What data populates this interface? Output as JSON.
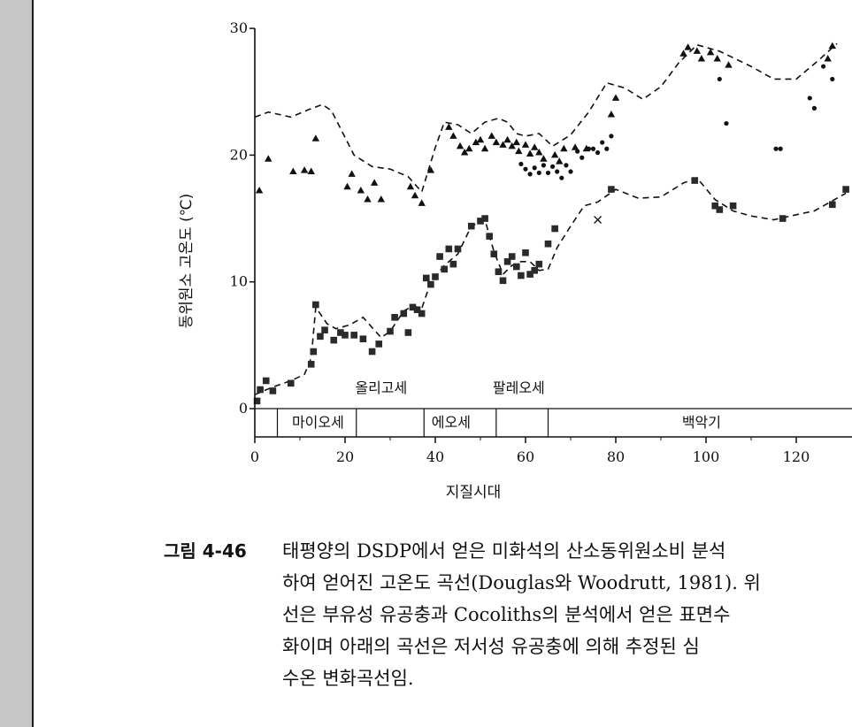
{
  "chart_data": {
    "type": "scatter",
    "xlabel": "지질시대",
    "ylabel": "동위원소 고온도 (℃)",
    "xlim": [
      0,
      130
    ],
    "ylim": [
      0,
      30
    ],
    "x_ticks": [
      0,
      20,
      40,
      60,
      80,
      100,
      120
    ],
    "y_ticks": [
      0,
      10,
      20,
      30
    ],
    "epochs": {
      "upper_row": [
        {
          "label": "올리고세",
          "x": 28
        },
        {
          "label": "팔레오세",
          "x": 58.5
        }
      ],
      "lower_row": [
        {
          "label": "마이오세",
          "x": 14
        },
        {
          "label": "에오세",
          "x": 43.5
        },
        {
          "label": "백악기",
          "x": 99
        }
      ],
      "boundaries": [
        5,
        22.5,
        37.5,
        53.5,
        65
      ]
    },
    "series": [
      {
        "marker": "triangle",
        "points": [
          [
            1,
            17.2
          ],
          [
            3,
            19.7
          ],
          [
            8.5,
            18.7
          ],
          [
            11,
            18.8
          ],
          [
            12.5,
            18.7
          ],
          [
            13.5,
            21.3
          ],
          [
            20.5,
            17.5
          ],
          [
            21.5,
            18.5
          ],
          [
            23.5,
            17.2
          ],
          [
            25,
            16.5
          ],
          [
            26.5,
            17.8
          ],
          [
            28,
            16.5
          ],
          [
            34.5,
            17.5
          ],
          [
            35.5,
            16.8
          ],
          [
            37,
            16.2
          ],
          [
            39,
            18.8
          ],
          [
            43,
            22.2
          ],
          [
            44,
            21.5
          ],
          [
            45.5,
            20.7
          ],
          [
            46.5,
            20.2
          ],
          [
            47.5,
            20.5
          ],
          [
            49,
            21
          ],
          [
            50,
            21.2
          ],
          [
            51,
            20.5
          ],
          [
            52.5,
            21.5
          ],
          [
            53.5,
            21
          ],
          [
            55,
            20.8
          ],
          [
            56,
            21.2
          ],
          [
            57,
            20.7
          ],
          [
            58,
            21
          ],
          [
            58.5,
            20.3
          ],
          [
            60,
            20.8
          ],
          [
            61,
            20.1
          ],
          [
            62,
            20.6
          ],
          [
            63,
            20.2
          ],
          [
            64,
            19.7
          ],
          [
            66.5,
            20
          ],
          [
            67.5,
            19.5
          ],
          [
            68.5,
            20.5
          ],
          [
            71,
            20.6
          ],
          [
            73.5,
            20.5
          ],
          [
            79,
            23.2
          ],
          [
            80,
            24.5
          ],
          [
            95,
            28
          ],
          [
            96,
            28.5
          ],
          [
            98,
            28.2
          ],
          [
            99,
            27.6
          ],
          [
            101,
            28.1
          ],
          [
            102.5,
            27.6
          ],
          [
            105,
            27.1
          ],
          [
            127,
            27.6
          ],
          [
            128,
            28.6
          ]
        ]
      },
      {
        "marker": "dot",
        "points": [
          [
            59,
            19.3
          ],
          [
            60,
            18.9
          ],
          [
            61,
            18.5
          ],
          [
            62,
            19
          ],
          [
            63,
            18.6
          ],
          [
            64,
            19.2
          ],
          [
            65,
            18.6
          ],
          [
            66,
            19.1
          ],
          [
            67,
            18.7
          ],
          [
            68,
            18.2
          ],
          [
            69,
            19.2
          ],
          [
            70,
            18.7
          ],
          [
            71.5,
            20.3
          ],
          [
            72.5,
            19.8
          ],
          [
            74,
            20.5
          ],
          [
            75,
            20.5
          ],
          [
            76,
            20.2
          ],
          [
            77,
            21
          ],
          [
            78,
            20.5
          ],
          [
            79,
            21.5
          ],
          [
            103,
            26
          ],
          [
            104.5,
            22.5
          ],
          [
            115.5,
            20.5
          ],
          [
            116.5,
            20.5
          ],
          [
            123,
            24.5
          ],
          [
            124,
            23.7
          ],
          [
            126,
            27
          ],
          [
            128,
            26
          ]
        ]
      },
      {
        "marker": "square",
        "points": [
          [
            0.5,
            0.6
          ],
          [
            1.2,
            1.5
          ],
          [
            2.5,
            2.2
          ],
          [
            4,
            1.4
          ],
          [
            8,
            2
          ],
          [
            12.5,
            3.5
          ],
          [
            13,
            4.5
          ],
          [
            13.5,
            8.2
          ],
          [
            14.5,
            5.7
          ],
          [
            15.5,
            6.2
          ],
          [
            17.5,
            5.4
          ],
          [
            19,
            6
          ],
          [
            20,
            5.8
          ],
          [
            22,
            5.8
          ],
          [
            24,
            5.5
          ],
          [
            26,
            4.5
          ],
          [
            27.5,
            5.1
          ],
          [
            30,
            6.1
          ],
          [
            31,
            7.2
          ],
          [
            33,
            7.5
          ],
          [
            34,
            6
          ],
          [
            35,
            8
          ],
          [
            36,
            7.8
          ],
          [
            37,
            7.5
          ],
          [
            38,
            10.3
          ],
          [
            39,
            9.8
          ],
          [
            40,
            10.4
          ],
          [
            41,
            12
          ],
          [
            42,
            11
          ],
          [
            43,
            12.6
          ],
          [
            44,
            11.4
          ],
          [
            45,
            12.6
          ],
          [
            48,
            14.4
          ],
          [
            50,
            14.8
          ],
          [
            51,
            15
          ],
          [
            52,
            13.6
          ],
          [
            53,
            12.2
          ],
          [
            54,
            10.8
          ],
          [
            55,
            10.1
          ],
          [
            56,
            11.6
          ],
          [
            57,
            12
          ],
          [
            58,
            11.2
          ],
          [
            59,
            10.5
          ],
          [
            60,
            12.3
          ],
          [
            61,
            10.6
          ],
          [
            62,
            10.9
          ],
          [
            63,
            11.4
          ],
          [
            65,
            13
          ],
          [
            66.5,
            14.2
          ],
          [
            79,
            17.3
          ],
          [
            97.5,
            18
          ],
          [
            102,
            16
          ],
          [
            103,
            15.7
          ],
          [
            106,
            16
          ],
          [
            117,
            15
          ],
          [
            128,
            16.1
          ],
          [
            131,
            17.3
          ]
        ]
      },
      {
        "marker": "cross",
        "points": [
          [
            76,
            14.9
          ]
        ]
      }
    ],
    "curves": [
      {
        "style": "dashed",
        "points": [
          [
            0,
            23
          ],
          [
            3,
            23.4
          ],
          [
            8,
            23
          ],
          [
            12,
            23.6
          ],
          [
            15,
            24
          ],
          [
            17,
            23.5
          ],
          [
            22,
            20
          ],
          [
            26,
            19.1
          ],
          [
            30,
            18.9
          ],
          [
            34,
            18.3
          ],
          [
            37,
            17.1
          ],
          [
            40,
            20.6
          ],
          [
            42,
            22.6
          ],
          [
            45,
            22.4
          ],
          [
            48,
            21.7
          ],
          [
            51,
            22.6
          ],
          [
            54,
            22.9
          ],
          [
            56,
            22.6
          ],
          [
            58,
            21.7
          ],
          [
            60,
            21.5
          ],
          [
            63,
            21.7
          ],
          [
            66,
            20.7
          ],
          [
            70,
            21.6
          ],
          [
            74,
            23.4
          ],
          [
            78,
            25.7
          ],
          [
            82,
            25.3
          ],
          [
            86,
            24.4
          ],
          [
            90,
            25.4
          ],
          [
            94,
            27.3
          ],
          [
            98,
            28.7
          ],
          [
            103,
            28.2
          ],
          [
            110,
            27
          ],
          [
            115,
            26
          ],
          [
            120,
            26
          ],
          [
            125,
            27.5
          ],
          [
            129,
            28.8
          ]
        ]
      },
      {
        "style": "dashed",
        "points": [
          [
            0,
            1.1
          ],
          [
            4,
            1.7
          ],
          [
            8,
            2.2
          ],
          [
            11,
            2.7
          ],
          [
            12.5,
            4
          ],
          [
            13.5,
            8
          ],
          [
            16,
            6.7
          ],
          [
            18,
            6.3
          ],
          [
            21,
            6.6
          ],
          [
            24,
            7.2
          ],
          [
            26,
            6.4
          ],
          [
            28,
            5.6
          ],
          [
            30,
            6.1
          ],
          [
            33,
            7.7
          ],
          [
            35,
            8.1
          ],
          [
            37,
            7.9
          ],
          [
            39,
            10
          ],
          [
            42,
            11.3
          ],
          [
            45,
            12.2
          ],
          [
            48,
            14.4
          ],
          [
            51,
            14.9
          ],
          [
            53,
            12.4
          ],
          [
            55,
            10.6
          ],
          [
            57,
            11.3
          ],
          [
            59,
            11.6
          ],
          [
            61,
            11.6
          ],
          [
            63,
            10.9
          ],
          [
            65,
            11
          ],
          [
            67,
            12.7
          ],
          [
            70,
            14.4
          ],
          [
            73,
            16
          ],
          [
            76,
            16.3
          ],
          [
            80,
            17.3
          ],
          [
            85,
            16.6
          ],
          [
            90,
            16.7
          ],
          [
            95,
            17.8
          ],
          [
            98,
            18.2
          ],
          [
            102,
            16.5
          ],
          [
            106,
            15.6
          ],
          [
            110,
            15.2
          ],
          [
            115,
            14.9
          ],
          [
            120,
            15.3
          ],
          [
            124,
            15.6
          ],
          [
            127,
            16.2
          ],
          [
            131,
            17
          ]
        ]
      }
    ]
  },
  "caption": {
    "label": "그림 4-46",
    "lines": [
      "태평양의 DSDP에서 얻은 미화석의 산소동위원소비 분석",
      "하여 얻어진 고온도 곡선(Douglas와 Woodrutt, 1981). 위",
      "선은 부유성 유공충과 Cocoliths의 분석에서 얻은 표면수",
      "화이며 아래의 곡선은 저서성 유공충에 의해 추정된 심",
      "수온 변화곡선임."
    ]
  }
}
